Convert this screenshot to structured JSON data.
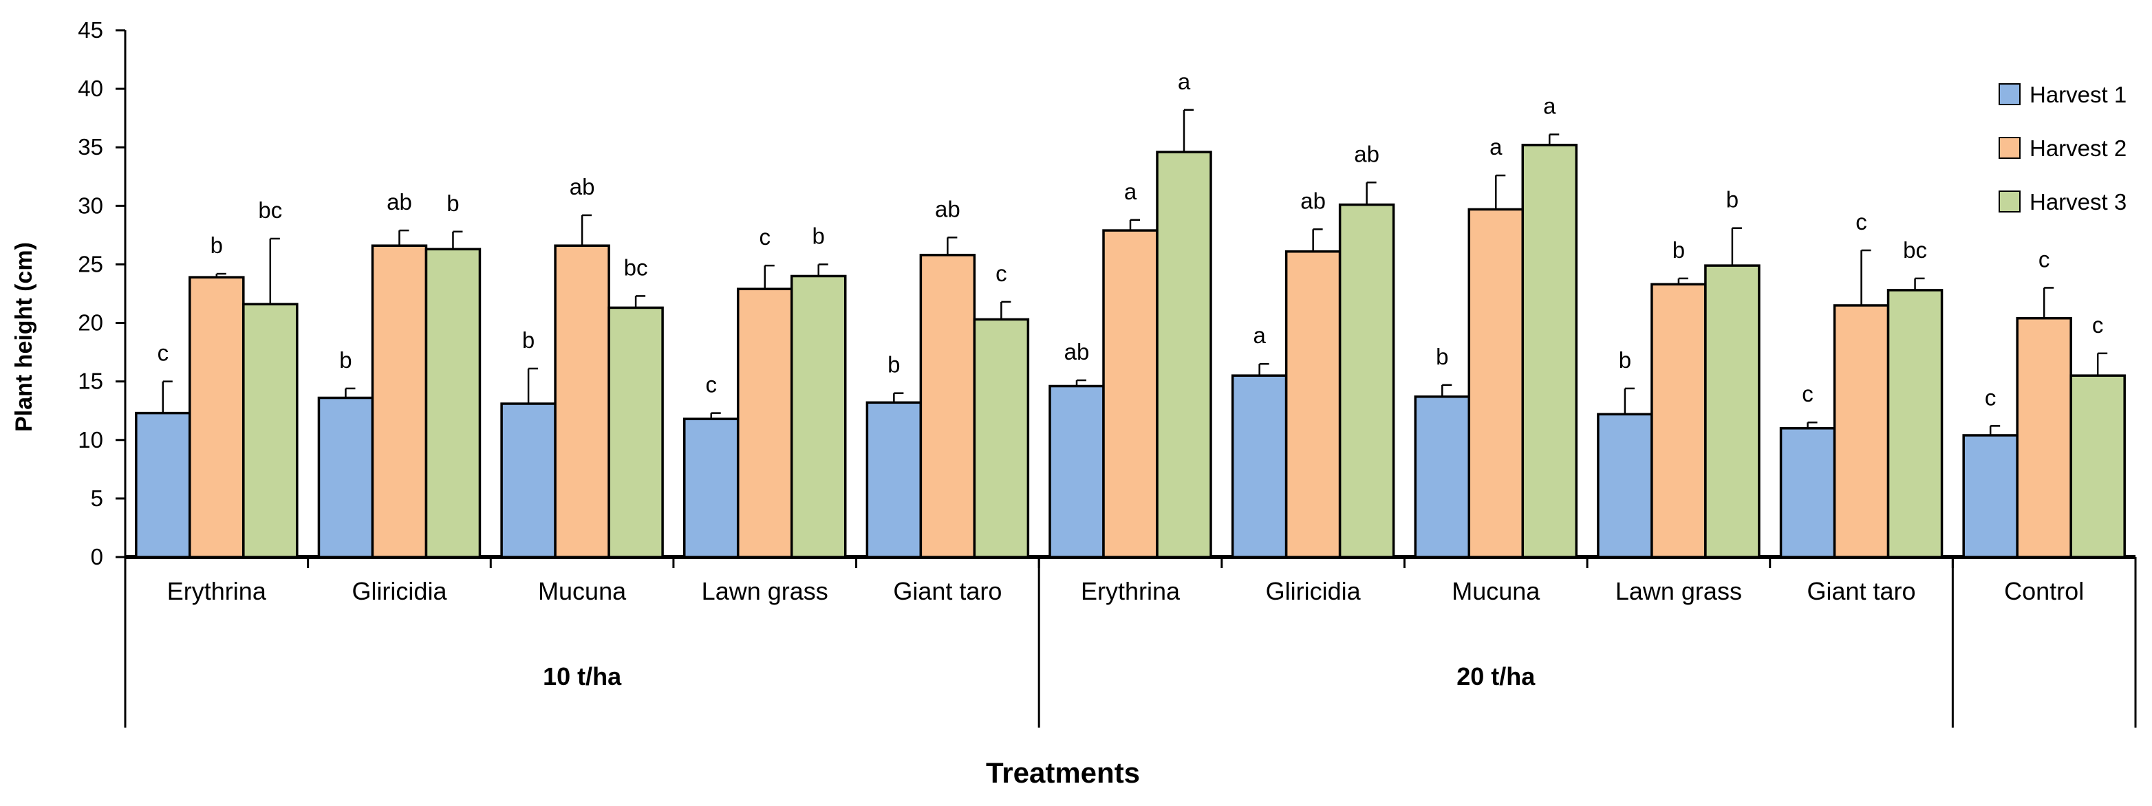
{
  "chart_data": {
    "type": "bar",
    "ylabel": "Plant height (cm)",
    "xlabel": "Treatments",
    "ylim": [
      0,
      45
    ],
    "yticks": [
      0,
      5,
      10,
      15,
      20,
      25,
      30,
      35,
      40,
      45
    ],
    "categories": [
      "Erythrina",
      "Gliricidia",
      "Mucuna",
      "Lawn grass",
      "Giant taro",
      "Erythrina",
      "Gliricidia",
      "Mucuna",
      "Lawn grass",
      "Giant taro",
      "Control"
    ],
    "groups": [
      {
        "label": "10 t/ha",
        "start": 0,
        "end": 4
      },
      {
        "label": "20 t/ha",
        "start": 5,
        "end": 9
      },
      {
        "label": "",
        "start": 10,
        "end": 10
      }
    ],
    "series": [
      {
        "name": "Harvest 1",
        "color": "#8eb4e3",
        "values": [
          12.3,
          13.6,
          13.1,
          11.8,
          13.2,
          14.6,
          15.5,
          13.7,
          12.2,
          11.0,
          10.4
        ],
        "errors": [
          2.7,
          0.8,
          3.0,
          0.5,
          0.8,
          0.5,
          1.0,
          1.0,
          2.2,
          0.5,
          0.8
        ],
        "letters": [
          "c",
          "b",
          "b",
          "c",
          "b",
          "ab",
          "a",
          "b",
          "b",
          "c",
          "c"
        ]
      },
      {
        "name": "Harvest 2",
        "color": "#fac090",
        "values": [
          23.9,
          26.6,
          26.6,
          22.9,
          25.8,
          27.9,
          26.1,
          29.7,
          23.3,
          21.5,
          20.4
        ],
        "errors": [
          0.3,
          1.3,
          2.6,
          2.0,
          1.5,
          0.9,
          1.9,
          2.9,
          0.5,
          4.7,
          2.6
        ],
        "letters": [
          "b",
          "ab",
          "ab",
          "c",
          "ab",
          "a",
          "ab",
          "a",
          "b",
          "c",
          "c"
        ]
      },
      {
        "name": "Harvest 3",
        "color": "#c3d69b",
        "values": [
          21.6,
          26.3,
          21.3,
          24.0,
          20.3,
          34.6,
          30.1,
          35.2,
          24.9,
          22.8,
          15.5
        ],
        "errors": [
          5.6,
          1.5,
          1.0,
          1.0,
          1.5,
          3.6,
          1.9,
          0.9,
          3.2,
          1.0,
          1.9
        ],
        "letters": [
          "bc",
          "b",
          "bc",
          "b",
          "c",
          "a",
          "ab",
          "a",
          "b",
          "bc",
          "c"
        ]
      }
    ],
    "legend_position": "top-right",
    "grid": false
  }
}
